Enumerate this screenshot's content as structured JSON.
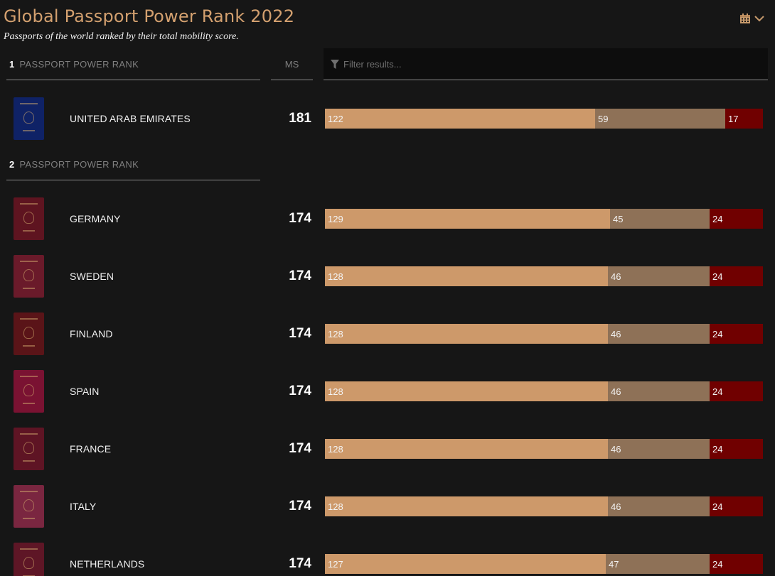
{
  "title": "Global Passport Power Rank 2022",
  "subtitle": "Passports of the world ranked by their total mobility score.",
  "calendar_icon": "calendar-icon",
  "header": {
    "rank_label": "PASSPORT POWER RANK",
    "ms_label": "MS",
    "filter_placeholder": "Filter results..."
  },
  "colors": {
    "visa_free": "#cd996a",
    "visa_on_arrival": "#8e7157",
    "visa_required": "#700000",
    "title": "#d3a06f"
  },
  "groups": [
    {
      "rank": "1",
      "label": "PASSPORT POWER RANK"
    },
    {
      "rank": "2",
      "label": "PASSPORT POWER RANK"
    }
  ],
  "rows": [
    {
      "country": "UNITED ARAB EMIRATES",
      "ms": "181",
      "visa_free": 122,
      "visa_on_arrival": 59,
      "visa_required": 17,
      "cover": "#0f2266"
    },
    {
      "country": "GERMANY",
      "ms": "174",
      "visa_free": 129,
      "visa_on_arrival": 45,
      "visa_required": 24,
      "cover": "#5e1420"
    },
    {
      "country": "SWEDEN",
      "ms": "174",
      "visa_free": 128,
      "visa_on_arrival": 46,
      "visa_required": 24,
      "cover": "#6a1a2a"
    },
    {
      "country": "FINLAND",
      "ms": "174",
      "visa_free": 128,
      "visa_on_arrival": 46,
      "visa_required": 24,
      "cover": "#5a1418"
    },
    {
      "country": "SPAIN",
      "ms": "174",
      "visa_free": 128,
      "visa_on_arrival": 46,
      "visa_required": 24,
      "cover": "#7a1232"
    },
    {
      "country": "FRANCE",
      "ms": "174",
      "visa_free": 128,
      "visa_on_arrival": 46,
      "visa_required": 24,
      "cover": "#5e1424"
    },
    {
      "country": "ITALY",
      "ms": "174",
      "visa_free": 128,
      "visa_on_arrival": 46,
      "visa_required": 24,
      "cover": "#7a2640"
    },
    {
      "country": "NETHERLANDS",
      "ms": "174",
      "visa_free": 127,
      "visa_on_arrival": 47,
      "visa_required": 24,
      "cover": "#5e1626"
    }
  ]
}
